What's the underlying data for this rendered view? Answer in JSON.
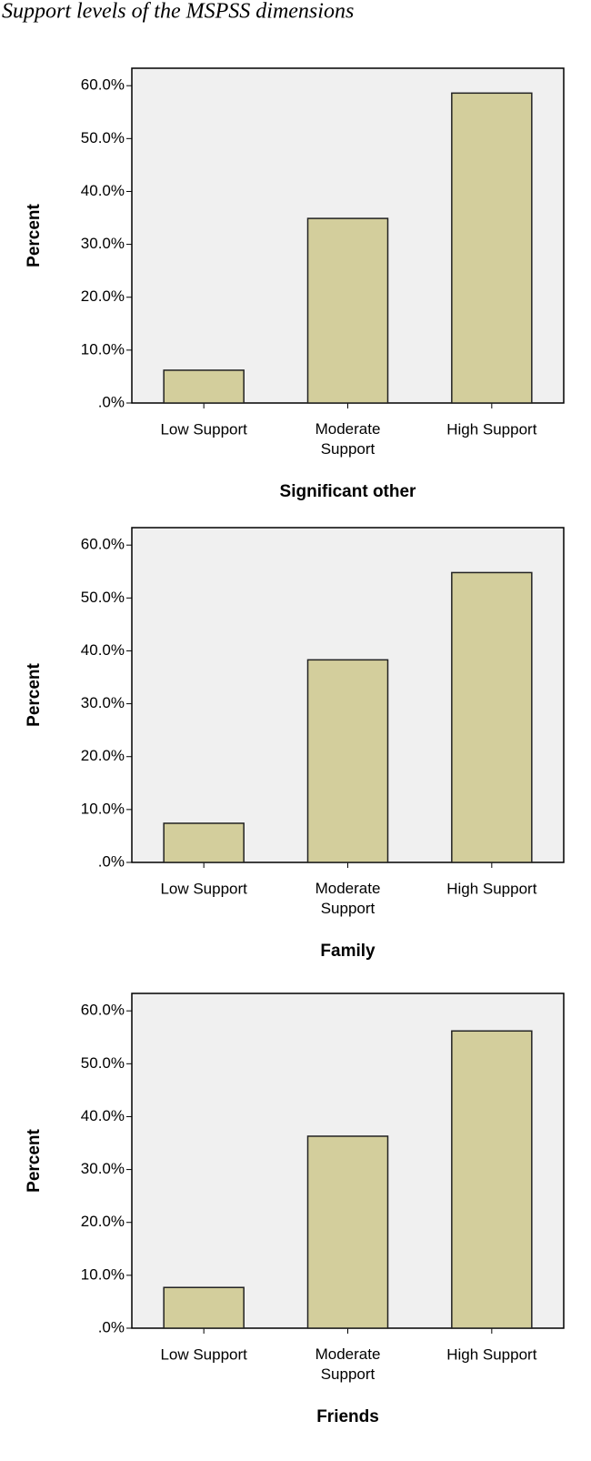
{
  "title": "Support levels of the MSPSS dimensions",
  "chart_data": [
    {
      "type": "bar",
      "x_label": "Significant other",
      "y_label": "Percent",
      "categories": [
        "Low Support",
        "Moderate Support",
        "High Support"
      ],
      "values": [
        6.2,
        34.9,
        58.6
      ],
      "color": "#d3ce9c",
      "ylim": [
        0,
        63.3
      ],
      "yticks": [
        {
          "value": 0,
          "label": ".0%"
        },
        {
          "value": 10,
          "label": "10.0%"
        },
        {
          "value": 20,
          "label": "20.0%"
        },
        {
          "value": 30,
          "label": "30.0%"
        },
        {
          "value": 40,
          "label": "40.0%"
        },
        {
          "value": 50,
          "label": "50.0%"
        },
        {
          "value": 60,
          "label": "60.0%"
        }
      ],
      "grid": false
    },
    {
      "type": "bar",
      "x_label": "Family",
      "y_label": "Percent",
      "categories": [
        "Low Support",
        "Moderate Support",
        "High Support"
      ],
      "values": [
        7.4,
        38.3,
        54.8
      ],
      "color": "#d3ce9c",
      "ylim": [
        0,
        63.3
      ],
      "yticks": [
        {
          "value": 0,
          "label": ".0%"
        },
        {
          "value": 10,
          "label": "10.0%"
        },
        {
          "value": 20,
          "label": "20.0%"
        },
        {
          "value": 30,
          "label": "30.0%"
        },
        {
          "value": 40,
          "label": "40.0%"
        },
        {
          "value": 50,
          "label": "50.0%"
        },
        {
          "value": 60,
          "label": "60.0%"
        }
      ],
      "grid": false
    },
    {
      "type": "bar",
      "x_label": "Friends",
      "y_label": "Percent",
      "categories": [
        "Low Support",
        "Moderate Support",
        "High Support"
      ],
      "values": [
        7.7,
        36.3,
        56.2
      ],
      "color": "#d3ce9c",
      "ylim": [
        0,
        63.3
      ],
      "yticks": [
        {
          "value": 0,
          "label": ".0%"
        },
        {
          "value": 10,
          "label": "10.0%"
        },
        {
          "value": 20,
          "label": "20.0%"
        },
        {
          "value": 30,
          "label": "30.0%"
        },
        {
          "value": 40,
          "label": "40.0%"
        },
        {
          "value": 50,
          "label": "50.0%"
        },
        {
          "value": 60,
          "label": "60.0%"
        }
      ],
      "grid": false
    }
  ]
}
